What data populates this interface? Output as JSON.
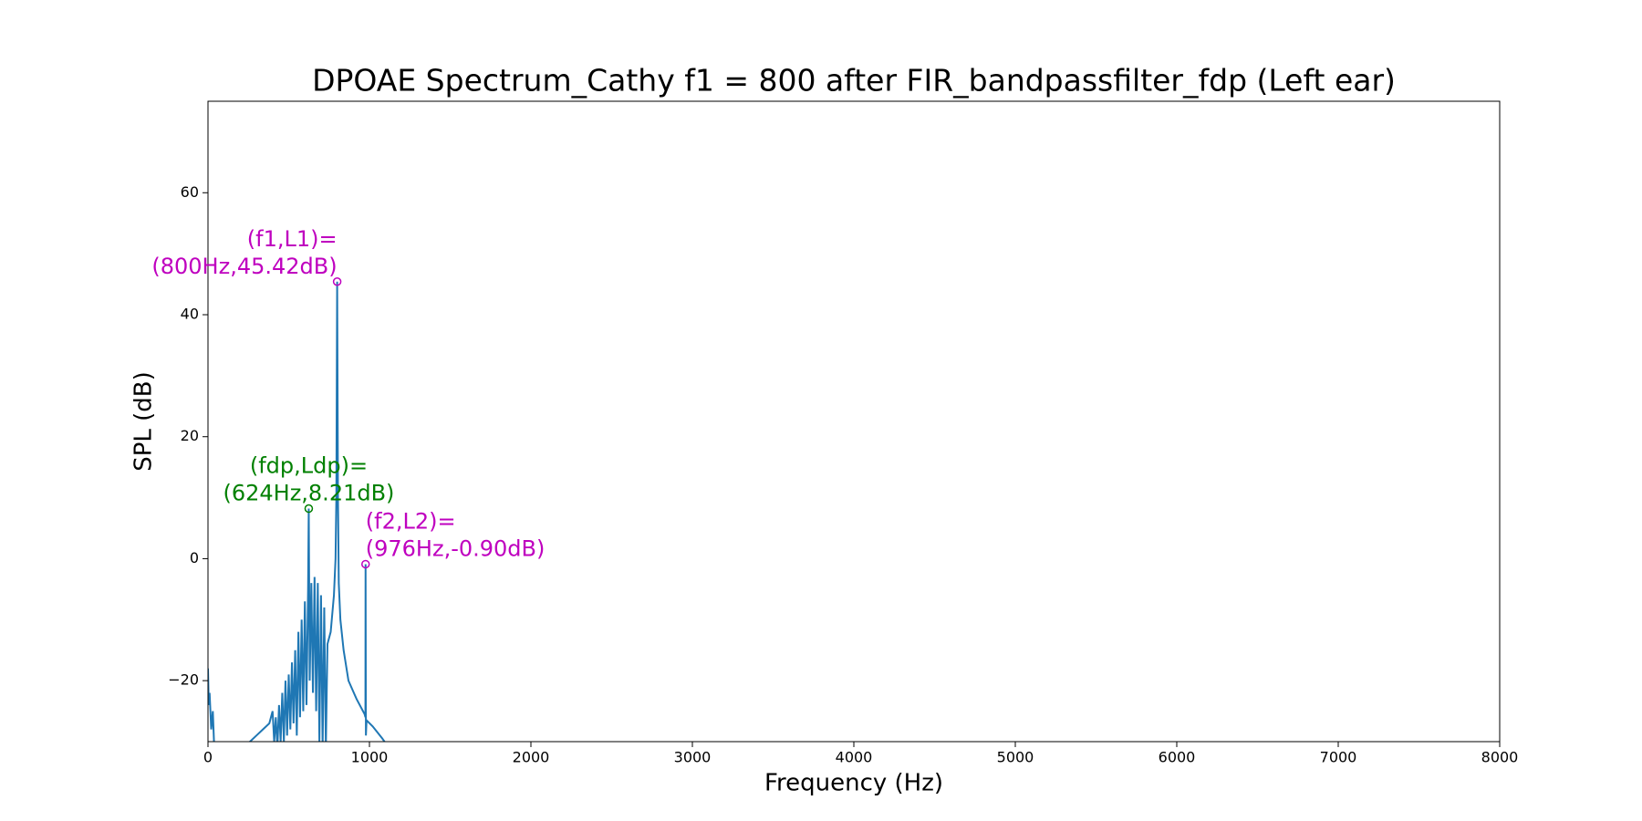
{
  "chart_data": {
    "type": "line",
    "title": "DPOAE Spectrum_Cathy f1 = 800 after FIR_bandpassfilter_fdp (Left ear)",
    "x_label": "Frequency (Hz)",
    "y_label": "SPL (dB)",
    "xlim": [
      0,
      8000
    ],
    "ylim": [
      -30,
      75
    ],
    "xticks": [
      0,
      1000,
      2000,
      3000,
      4000,
      5000,
      6000,
      7000,
      8000
    ],
    "yticks": [
      {
        "value": -20,
        "label": "−20"
      },
      0,
      20,
      40,
      60
    ],
    "x": [
      0,
      5,
      10,
      20,
      30,
      40,
      200,
      260,
      300,
      340,
      380,
      400,
      410,
      420,
      430,
      440,
      450,
      460,
      470,
      480,
      490,
      500,
      510,
      520,
      530,
      540,
      550,
      560,
      570,
      580,
      590,
      600,
      610,
      620,
      624,
      630,
      640,
      650,
      660,
      670,
      680,
      690,
      700,
      710,
      720,
      730,
      740,
      760,
      780,
      790,
      795,
      800,
      805,
      810,
      820,
      840,
      870,
      920,
      970,
      975,
      976,
      978,
      982,
      1020,
      1080,
      1120
    ],
    "series": [
      {
        "color": "#1f77b4",
        "values": [
          -18,
          -24,
          -22,
          -28,
          -25,
          -32,
          -31,
          -30,
          -29,
          -28,
          -27,
          -25,
          -30,
          -26,
          -31,
          -24,
          -30,
          -22,
          -30,
          -20,
          -29,
          -19,
          -28,
          -17,
          -27,
          -15,
          -29,
          -12,
          -26,
          -10,
          -25,
          -7,
          -24,
          -5,
          8.21,
          -20,
          -4,
          -22,
          -3,
          -25,
          -4,
          -30,
          -6,
          -31,
          -8,
          -31,
          -14,
          -12,
          -6,
          0,
          10,
          45.42,
          10,
          -4,
          -10,
          -15,
          -20,
          -23,
          -25.5,
          -26,
          -0.9,
          -29,
          -26.5,
          -27.5,
          -29.5,
          -31
        ]
      }
    ],
    "annotations": [
      {
        "text": [
          "(f1,L1)=",
          "(800Hz,45.42dB)"
        ],
        "x": 800,
        "y": 45.42,
        "color": "#bf00bf"
      },
      {
        "text": [
          "(fdp,Ldp)=",
          "(624Hz,8.21dB)"
        ],
        "x": 624,
        "y": 8.21,
        "color": "#008000"
      },
      {
        "text": [
          "(f2,L2)=",
          "(976Hz,-0.90dB)"
        ],
        "x": 976,
        "y": -0.9,
        "color": "#bf00bf"
      }
    ]
  }
}
